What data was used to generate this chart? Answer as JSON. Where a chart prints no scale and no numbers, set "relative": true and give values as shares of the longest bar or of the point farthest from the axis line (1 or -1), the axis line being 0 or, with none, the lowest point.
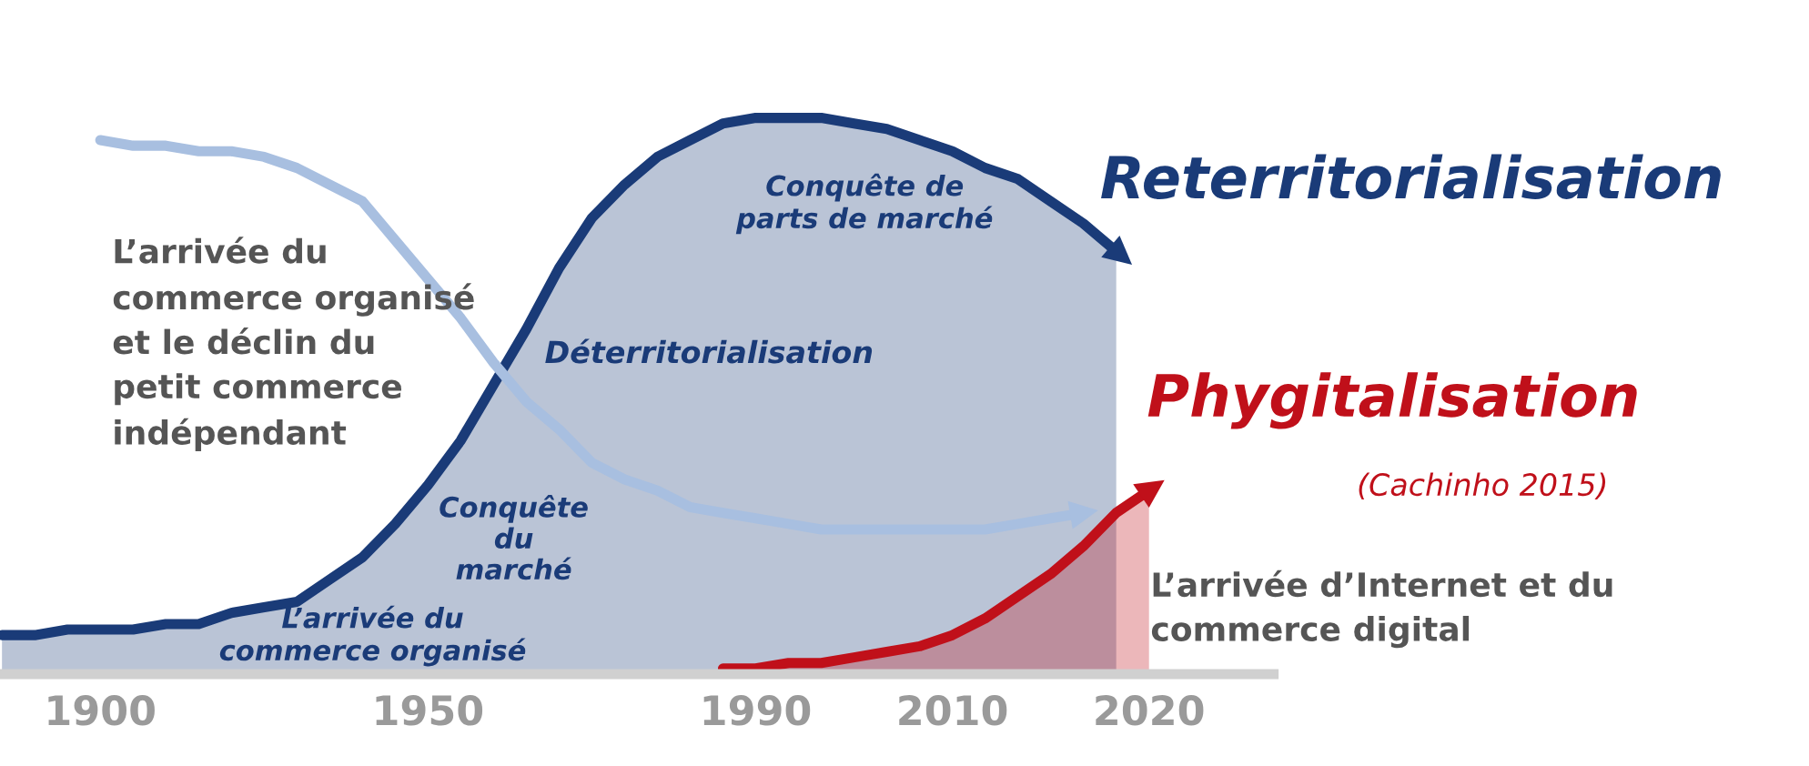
{
  "chart_data": {
    "type": "line",
    "relative": true,
    "categories": [
      null,
      null,
      null,
      "1900",
      null,
      null,
      null,
      null,
      null,
      null,
      null,
      null,
      null,
      "1950",
      null,
      null,
      null,
      null,
      null,
      null,
      null,
      null,
      null,
      "1990",
      null,
      null,
      null,
      null,
      null,
      "2010",
      null,
      null,
      null,
      null,
      null,
      "2020"
    ],
    "series": [
      {
        "type": "area",
        "color": "#1a3b78",
        "values": [
          0.07,
          0.07,
          0.08,
          0.08,
          0.08,
          0.09,
          0.09,
          0.11,
          0.12,
          0.13,
          0.17,
          0.21,
          0.27,
          0.34,
          0.42,
          0.52,
          0.62,
          0.73,
          0.82,
          0.88,
          0.93,
          0.96,
          0.99,
          1.0,
          1.0,
          1.0,
          0.99,
          0.98,
          0.96,
          0.94,
          0.91,
          0.89,
          0.85,
          0.81,
          0.76,
          null
        ]
      },
      {
        "color": "#a8bfe0",
        "values": [
          null,
          null,
          null,
          0.96,
          0.95,
          0.95,
          0.94,
          0.94,
          0.93,
          0.91,
          0.88,
          0.85,
          0.78,
          0.71,
          0.64,
          0.56,
          0.49,
          0.44,
          0.38,
          0.35,
          0.33,
          0.3,
          0.29,
          0.28,
          0.27,
          0.26,
          0.26,
          0.26,
          0.26,
          0.26,
          0.26,
          0.27,
          0.28,
          0.29,
          null,
          null
        ]
      },
      {
        "type": "area",
        "color": "#c0101a",
        "values": [
          null,
          null,
          null,
          null,
          null,
          null,
          null,
          null,
          null,
          null,
          null,
          null,
          null,
          null,
          null,
          null,
          null,
          null,
          null,
          null,
          null,
          null,
          0.01,
          0.01,
          0.02,
          0.02,
          0.03,
          0.04,
          0.05,
          0.07,
          0.1,
          0.14,
          0.18,
          0.23,
          0.29,
          0.33
        ]
      }
    ],
    "annotations": [
      "Reterritorialisation",
      "Phygitalisation",
      "(Cachinho 2015)",
      "L’arrivée du\ncommerce organisé\net le déclin du\npetit commerce\nindépendant",
      "Conquête de\nparts de marché",
      "Déterritorialisation",
      "Conquête\ndu\nmarché",
      "L’arrivée du\ncommerce organisé",
      "L’arrivée d’Internet et du\ncommerce digital"
    ]
  }
}
